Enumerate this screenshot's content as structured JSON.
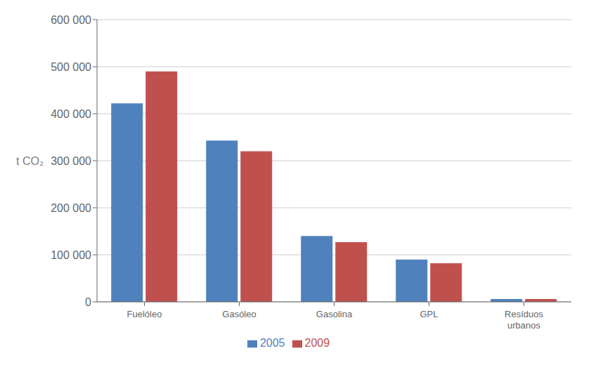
{
  "chart_data": {
    "type": "bar",
    "categories": [
      "Fuelóleo",
      "Gasóleo",
      "Gasolina",
      "GPL",
      "Resíduos\nurbanos"
    ],
    "series": [
      {
        "name": "2005",
        "color": "#4F81BD",
        "values": [
          422000,
          343000,
          140000,
          90000,
          6000
        ]
      },
      {
        "name": "2009",
        "color": "#C0504D",
        "values": [
          490000,
          320000,
          127000,
          82000,
          6000
        ]
      }
    ],
    "ylabel": "t CO₂",
    "ylim": [
      0,
      600000
    ],
    "yticks": [
      0,
      {
        "value": 100000,
        "label": "100 000"
      },
      {
        "value": 200000,
        "label": "200 000"
      },
      {
        "value": 300000,
        "label": "300 000"
      },
      {
        "value": 400000,
        "label": "400 000"
      },
      {
        "value": 500000,
        "label": "500 000"
      },
      {
        "value": 600000,
        "label": "600 000"
      }
    ],
    "grid": true,
    "legend": "bottom"
  }
}
